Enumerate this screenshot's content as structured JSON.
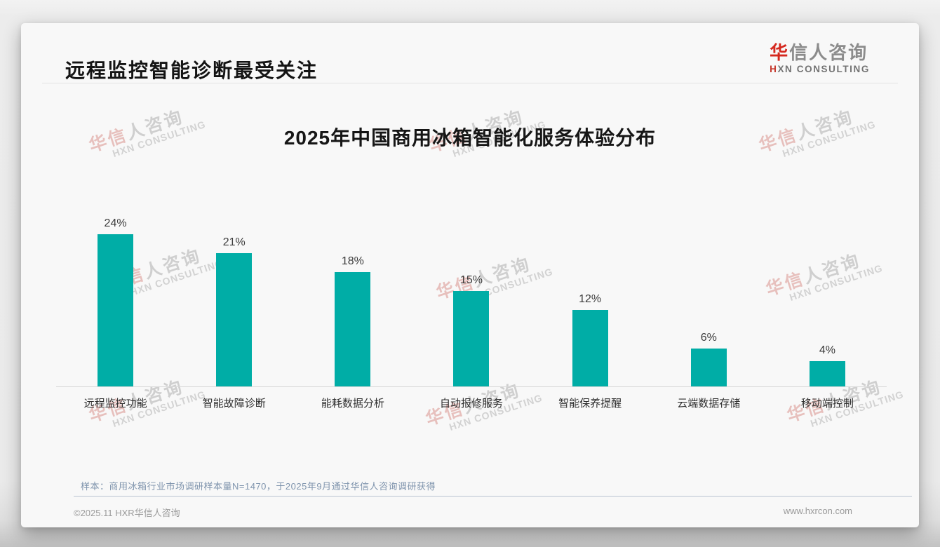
{
  "header": {
    "title": "远程监控智能诊断最受关注",
    "logo": {
      "zh_first": "华",
      "zh_rest": "信人咨询",
      "en_first": "H",
      "en_rest": "XN CONSULTING"
    }
  },
  "chart_data": {
    "type": "bar",
    "title": "2025年中国商用冰箱智能化服务体验分布",
    "categories": [
      "远程监控功能",
      "智能故障诊断",
      "能耗数据分析",
      "自动报修服务",
      "智能保养提醒",
      "云端数据存储",
      "移动端控制"
    ],
    "values": [
      24,
      21,
      18,
      15,
      12,
      6,
      4
    ],
    "value_labels": [
      "24%",
      "21%",
      "18%",
      "15%",
      "12%",
      "6%",
      "4%"
    ],
    "unit": "%",
    "ylim": [
      0,
      27
    ],
    "grid": false,
    "legend": false,
    "bar_color": "#00ada6"
  },
  "watermark": {
    "zh_a": "华信",
    "zh_b": "人咨询",
    "en": "HXN CONSULTING"
  },
  "footnote": "样本：商用冰箱行业市场调研样本量N=1470，于2025年9月通过华信人咨询调研获得",
  "footer": {
    "left": "©2025.11 HXR华信人咨询",
    "right": "www.hxrcon.com"
  },
  "colors": {
    "brand_red": "#d5281e",
    "bar_teal": "#00ada6",
    "footnote_blue_gray": "#7f94ad"
  }
}
